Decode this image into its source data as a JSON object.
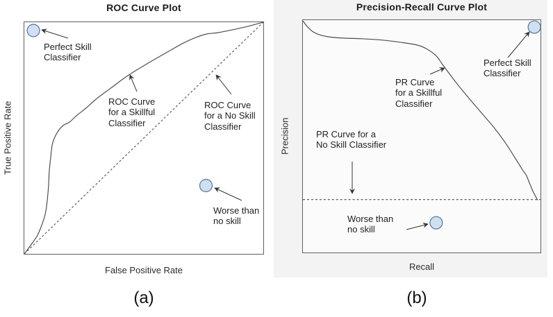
{
  "figure": {
    "panels": [
      {
        "title": "ROC Curve Plot",
        "xlabel": "False Positive Rate",
        "ylabel": "True Positive Rate",
        "caption": "(a)",
        "annotations": {
          "perfect_skill": "Perfect Skill\nClassifier",
          "skillful_curve": "ROC Curve\nfor a Skillful\nClassifier",
          "no_skill_curve": "ROC Curve\nfor a No Skill\nClassifier",
          "worse_than": "Worse than\nno skill"
        }
      },
      {
        "title": "Precision-Recall Curve Plot",
        "xlabel": "Recall",
        "ylabel": "Precision",
        "caption": "(b)",
        "annotations": {
          "perfect_skill": "Perfect Skill\nClassifier",
          "skillful_curve": "PR Curve\nfor a Skillful\nClassifier",
          "no_skill_curve": "PR Curve for a\nNo Skill Classifier",
          "worse_than": "Worse than\nno skill"
        }
      }
    ]
  },
  "colors": {
    "curve_stroke": "#4d4d4d",
    "dashed_stroke": "#5a5a5a",
    "marker_fill": "#cfe0f2",
    "marker_stroke": "#5f7d9c",
    "panel_background": "#f3f3f3",
    "arrow": "#333333"
  },
  "chart_data": [
    {
      "type": "line",
      "title": "ROC Curve Plot",
      "xlabel": "False Positive Rate",
      "ylabel": "True Positive Rate",
      "xlim": [
        0,
        1
      ],
      "ylim": [
        0,
        1
      ],
      "grid": false,
      "ticks": "none",
      "legend": "annotated-inline",
      "series": [
        {
          "name": "ROC Curve for a Skillful Classifier",
          "style": "solid",
          "smooth": true,
          "points": [
            [
              0.0,
              0.0
            ],
            [
              0.032,
              0.045
            ],
            [
              0.055,
              0.08
            ],
            [
              0.072,
              0.122
            ],
            [
              0.087,
              0.17
            ],
            [
              0.095,
              0.223
            ],
            [
              0.101,
              0.289
            ],
            [
              0.104,
              0.354
            ],
            [
              0.11,
              0.414
            ],
            [
              0.118,
              0.476
            ],
            [
              0.136,
              0.521
            ],
            [
              0.162,
              0.554
            ],
            [
              0.188,
              0.568
            ],
            [
              0.22,
              0.598
            ],
            [
              0.26,
              0.631
            ],
            [
              0.306,
              0.673
            ],
            [
              0.364,
              0.717
            ],
            [
              0.431,
              0.768
            ],
            [
              0.509,
              0.818
            ],
            [
              0.59,
              0.866
            ],
            [
              0.662,
              0.908
            ],
            [
              0.72,
              0.935
            ],
            [
              0.763,
              0.949
            ],
            [
              0.812,
              0.955
            ],
            [
              0.87,
              0.967
            ],
            [
              0.936,
              0.982
            ],
            [
              1.0,
              1.0
            ]
          ]
        },
        {
          "name": "ROC Curve for a No Skill Classifier",
          "style": "dashed",
          "smooth": false,
          "points": [
            [
              0.0,
              0.0
            ],
            [
              1.0,
              1.0
            ]
          ]
        }
      ],
      "markers": [
        {
          "name": "Perfect Skill Classifier",
          "x": 0.038,
          "y": 0.964
        },
        {
          "name": "Worse than no skill",
          "x": 0.76,
          "y": 0.295
        }
      ]
    },
    {
      "type": "line",
      "title": "Precision-Recall Curve Plot",
      "xlabel": "Recall",
      "ylabel": "Precision",
      "xlim": [
        0,
        1
      ],
      "ylim": [
        0,
        1
      ],
      "grid": false,
      "ticks": "none",
      "legend": "annotated-inline",
      "series": [
        {
          "name": "PR Curve for a Skillful Classifier",
          "style": "solid",
          "smooth": true,
          "points": [
            [
              0.0,
              0.997
            ],
            [
              0.015,
              0.976
            ],
            [
              0.038,
              0.953
            ],
            [
              0.067,
              0.938
            ],
            [
              0.102,
              0.929
            ],
            [
              0.16,
              0.923
            ],
            [
              0.247,
              0.92
            ],
            [
              0.334,
              0.914
            ],
            [
              0.407,
              0.905
            ],
            [
              0.48,
              0.893
            ],
            [
              0.523,
              0.875
            ],
            [
              0.561,
              0.846
            ],
            [
              0.587,
              0.81
            ],
            [
              0.613,
              0.774
            ],
            [
              0.648,
              0.727
            ],
            [
              0.698,
              0.665
            ],
            [
              0.753,
              0.599
            ],
            [
              0.805,
              0.537
            ],
            [
              0.852,
              0.472
            ],
            [
              0.892,
              0.409
            ],
            [
              0.924,
              0.356
            ],
            [
              0.939,
              0.335
            ],
            [
              0.951,
              0.306
            ],
            [
              0.968,
              0.264
            ],
            [
              0.988,
              0.225
            ]
          ]
        },
        {
          "name": "PR Curve for a No Skill Classifier",
          "style": "dashed",
          "smooth": false,
          "points": [
            [
              0.0,
              0.228
            ],
            [
              1.0,
              0.228
            ]
          ]
        }
      ],
      "markers": [
        {
          "name": "Perfect Skill Classifier",
          "x": 0.974,
          "y": 0.97
        },
        {
          "name": "Worse than no skill",
          "x": 0.561,
          "y": 0.128
        }
      ]
    }
  ]
}
